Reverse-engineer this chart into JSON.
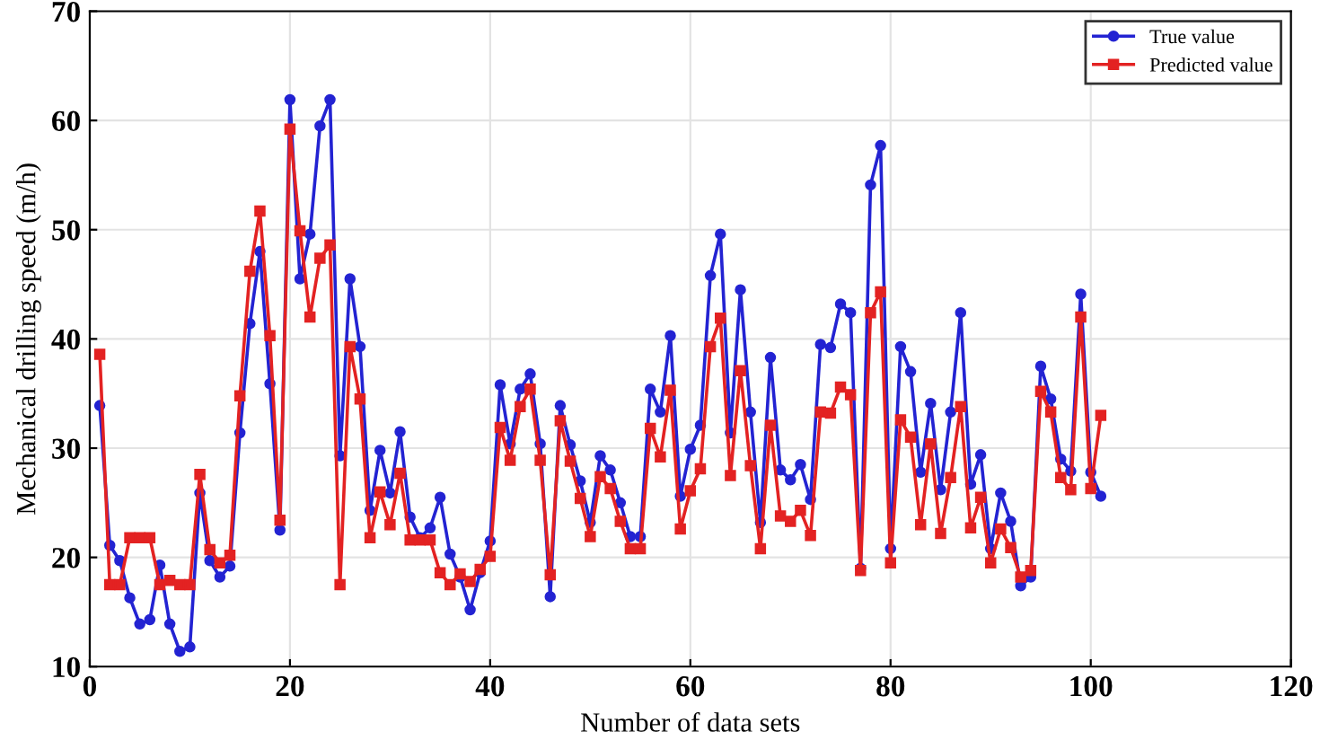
{
  "chart_data": {
    "type": "line",
    "xlabel": "Number of data sets",
    "ylabel": "Mechanical drilling speed (m/h)",
    "x": [
      1,
      2,
      3,
      4,
      5,
      6,
      7,
      8,
      9,
      10,
      11,
      12,
      13,
      14,
      15,
      16,
      17,
      18,
      19,
      20,
      21,
      22,
      23,
      24,
      25,
      26,
      27,
      28,
      29,
      30,
      31,
      32,
      33,
      34,
      35,
      36,
      37,
      38,
      39,
      40,
      41,
      42,
      43,
      44,
      45,
      46,
      47,
      48,
      49,
      50,
      51,
      52,
      53,
      54,
      55,
      56,
      57,
      58,
      59,
      60,
      61,
      62,
      63,
      64,
      65,
      66,
      67,
      68,
      69,
      70,
      71,
      72,
      73,
      74,
      75,
      76,
      77,
      78,
      79,
      80,
      81,
      82,
      83,
      84,
      85,
      86,
      87,
      88,
      89,
      90,
      91,
      92,
      93,
      94,
      95,
      96,
      97,
      98,
      99,
      100,
      101
    ],
    "series": [
      {
        "name": "True value",
        "color": "#2323d2",
        "marker": "circle",
        "values": [
          33.9,
          21.1,
          19.7,
          16.3,
          13.9,
          14.3,
          19.3,
          13.9,
          11.4,
          11.8,
          25.9,
          19.7,
          18.2,
          19.2,
          31.4,
          41.4,
          48.0,
          35.9,
          22.5,
          61.9,
          45.5,
          49.6,
          59.5,
          61.9,
          29.3,
          45.5,
          39.3,
          24.3,
          29.8,
          25.9,
          31.5,
          23.7,
          21.8,
          22.7,
          25.5,
          20.3,
          18.2,
          15.2,
          18.6,
          21.5,
          35.8,
          30.4,
          35.4,
          36.8,
          30.4,
          16.4,
          33.9,
          30.3,
          27.0,
          23.2,
          29.3,
          28.0,
          25.0,
          21.9,
          21.9,
          35.4,
          33.3,
          40.3,
          25.6,
          29.9,
          32.1,
          45.8,
          49.6,
          31.4,
          44.5,
          33.3,
          23.2,
          38.3,
          28.0,
          27.1,
          28.5,
          25.3,
          39.5,
          39.2,
          43.2,
          42.4,
          19.0,
          54.1,
          57.7,
          20.8,
          39.3,
          37.0,
          27.8,
          34.1,
          26.2,
          33.3,
          42.4,
          26.7,
          29.4,
          20.8,
          25.9,
          23.3,
          17.4,
          18.2,
          37.5,
          34.5,
          29.0,
          27.9,
          44.1,
          27.8,
          25.6
        ]
      },
      {
        "name": "Predicted value",
        "color": "#e32222",
        "marker": "square",
        "values": [
          38.6,
          17.5,
          17.5,
          21.8,
          21.8,
          21.8,
          17.5,
          17.9,
          17.5,
          17.5,
          27.6,
          20.7,
          19.5,
          20.2,
          34.8,
          46.2,
          51.7,
          40.3,
          23.4,
          59.2,
          49.9,
          42.0,
          47.4,
          48.6,
          17.5,
          39.3,
          34.5,
          21.8,
          26.0,
          23.0,
          27.7,
          21.6,
          21.6,
          21.6,
          18.6,
          17.5,
          18.5,
          17.8,
          18.9,
          20.1,
          31.9,
          28.9,
          33.8,
          35.4,
          28.9,
          18.4,
          32.5,
          28.8,
          25.4,
          21.9,
          27.4,
          26.3,
          23.3,
          20.8,
          20.8,
          31.8,
          29.2,
          35.3,
          22.6,
          26.1,
          28.1,
          39.3,
          41.9,
          27.5,
          37.1,
          28.4,
          20.8,
          32.1,
          23.8,
          23.3,
          24.3,
          22.0,
          33.3,
          33.2,
          35.6,
          34.9,
          18.8,
          42.4,
          44.3,
          19.5,
          32.6,
          31.0,
          23.0,
          30.4,
          22.2,
          27.3,
          33.8,
          22.7,
          25.5,
          19.5,
          22.6,
          20.9,
          18.2,
          18.8,
          35.2,
          33.3,
          27.3,
          26.2,
          42.0,
          26.3,
          33.0
        ]
      }
    ],
    "xlim": [
      0,
      120
    ],
    "xticks": [
      0,
      20,
      40,
      60,
      80,
      100,
      120
    ],
    "ylim": [
      10,
      70
    ],
    "yticks": [
      10,
      20,
      30,
      40,
      50,
      60,
      70
    ],
    "grid": true,
    "legend": "top right",
    "line_style": "solid"
  }
}
